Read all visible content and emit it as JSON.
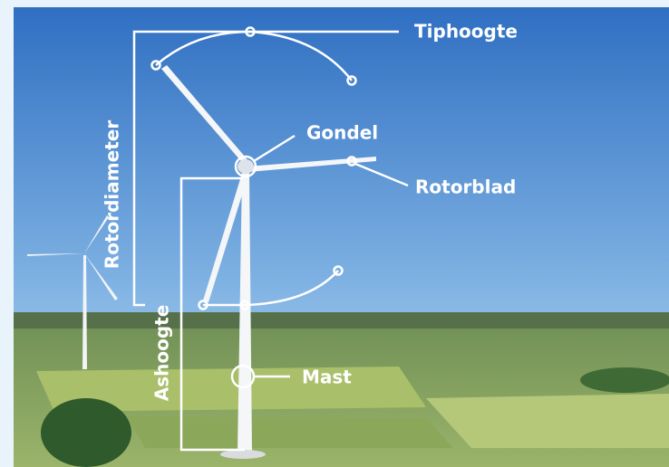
{
  "labels": {
    "tip_height": "Tiphoogte",
    "nacelle": "Gondel",
    "blade": "Rotorblad",
    "mast": "Mast",
    "rotor_diameter": "Rotordiameter",
    "hub_height": "Ashoogte"
  }
}
